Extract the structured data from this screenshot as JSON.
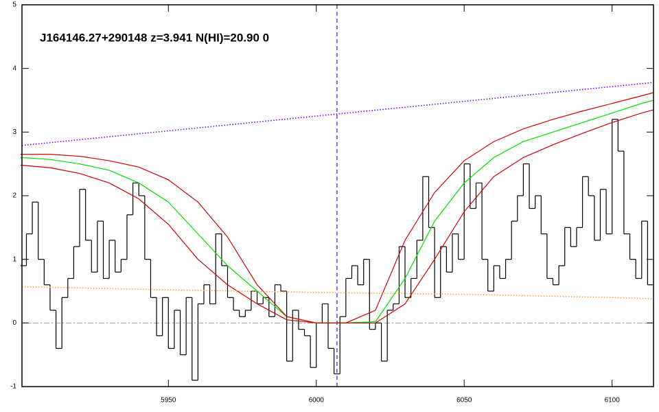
{
  "chart_data": {
    "type": "spectrum",
    "title": "J164146.27+290148 z=3.941 N(HI)=20.90 0",
    "xlim": [
      5900.5,
      6114
    ],
    "ylim": [
      -1,
      5
    ],
    "xticks": [
      5950,
      6000,
      6050,
      6100
    ],
    "yticks": [
      -1,
      0,
      1,
      2,
      3,
      4,
      5
    ],
    "bin_width": 2,
    "flux": {
      "color": "#000000",
      "x": [
        5901,
        5903,
        5905,
        5907,
        5909,
        5911,
        5913,
        5915,
        5917,
        5919,
        5921,
        5923,
        5925,
        5927,
        5929,
        5931,
        5933,
        5935,
        5937,
        5939,
        5941,
        5943,
        5945,
        5947,
        5949,
        5951,
        5953,
        5955,
        5957,
        5959,
        5961,
        5963,
        5965,
        5967,
        5969,
        5971,
        5973,
        5975,
        5977,
        5979,
        5981,
        5983,
        5985,
        5987,
        5989,
        5991,
        5993,
        5995,
        5997,
        5999,
        6001,
        6003,
        6005,
        6007,
        6009,
        6011,
        6013,
        6015,
        6017,
        6019,
        6021,
        6023,
        6025,
        6027,
        6029,
        6031,
        6033,
        6035,
        6037,
        6039,
        6041,
        6043,
        6045,
        6047,
        6049,
        6051,
        6053,
        6055,
        6057,
        6059,
        6061,
        6063,
        6065,
        6067,
        6069,
        6071,
        6073,
        6075,
        6077,
        6079,
        6081,
        6083,
        6085,
        6087,
        6089,
        6091,
        6093,
        6095,
        6097,
        6099,
        6101,
        6103,
        6105,
        6107,
        6109,
        6111,
        6113
      ],
      "values": [
        0.9,
        1.4,
        1.9,
        1.0,
        0.6,
        0.2,
        -0.4,
        0.4,
        0.7,
        1.2,
        2.1,
        1.3,
        0.8,
        1.6,
        0.7,
        1.3,
        0.8,
        1.0,
        1.7,
        2.2,
        2.0,
        1.0,
        0.4,
        -0.2,
        0.4,
        -0.4,
        0.2,
        -0.5,
        0.4,
        -0.9,
        0.3,
        0.6,
        0.3,
        1.4,
        0.9,
        0.4,
        0.2,
        0.1,
        0.2,
        0.5,
        0.3,
        0.4,
        0.1,
        0.6,
        0.5,
        -0.6,
        0.2,
        -0.1,
        -0.2,
        -0.7,
        0.0,
        0.3,
        -0.4,
        -0.8,
        0.1,
        0.7,
        0.9,
        0.6,
        1.0,
        -0.1,
        0.0,
        -0.6,
        0.2,
        0.3,
        1.2,
        0.4,
        0.7,
        1.3,
        2.3,
        1.5,
        0.4,
        1.2,
        0.8,
        1.4,
        1.0,
        2.5,
        1.8,
        2.2,
        1.0,
        0.5,
        0.9,
        0.7,
        1.0,
        1.6,
        2.0,
        2.5,
        1.8,
        2.0,
        1.4,
        0.7,
        0.6,
        0.9,
        1.5,
        1.2,
        1.5,
        2.3,
        2.0,
        1.3,
        2.1,
        1.4,
        3.2,
        2.7,
        1.4,
        1.0,
        0.7,
        1.6,
        0.6
      ]
    },
    "series": [
      {
        "color": "#00dd00",
        "style": "solid",
        "x": [
          5900,
          5910,
          5920,
          5930,
          5940,
          5950,
          5960,
          5970,
          5980,
          5990,
          6000,
          6010,
          6020,
          6030,
          6040,
          6050,
          6060,
          6070,
          6080,
          6090,
          6100,
          6110,
          6114
        ],
        "values": [
          2.6,
          2.57,
          2.5,
          2.4,
          2.2,
          1.9,
          1.4,
          0.9,
          0.5,
          0.1,
          0.0,
          0.0,
          0.02,
          0.7,
          1.6,
          2.2,
          2.6,
          2.85,
          3.0,
          3.15,
          3.3,
          3.45,
          3.5
        ]
      },
      {
        "color": "#cc0000",
        "style": "solid",
        "x": [
          5900,
          5910,
          5920,
          5930,
          5940,
          5950,
          5960,
          5970,
          5980,
          5990,
          6000,
          6010,
          6020,
          6030,
          6040,
          6050,
          6060,
          6070,
          6080,
          6090,
          6100,
          6110,
          6114
        ],
        "values": [
          2.65,
          2.65,
          2.62,
          2.55,
          2.45,
          2.25,
          1.9,
          1.35,
          0.6,
          0.1,
          0.0,
          0.0,
          0.2,
          1.3,
          2.05,
          2.55,
          2.85,
          3.05,
          3.2,
          3.33,
          3.45,
          3.57,
          3.62
        ]
      },
      {
        "color": "#cc0000",
        "style": "solid",
        "x": [
          5900,
          5910,
          5920,
          5930,
          5940,
          5950,
          5960,
          5970,
          5980,
          5990,
          6000,
          6010,
          6020,
          6030,
          6040,
          6050,
          6060,
          6070,
          6080,
          6090,
          6100,
          6110,
          6114
        ],
        "values": [
          2.48,
          2.44,
          2.35,
          2.2,
          1.95,
          1.55,
          1.0,
          0.6,
          0.3,
          0.05,
          0.0,
          0.0,
          0.0,
          0.3,
          1.0,
          1.75,
          2.3,
          2.6,
          2.8,
          2.98,
          3.15,
          3.3,
          3.35
        ]
      },
      {
        "color": "#6a00ff",
        "style": "dotted",
        "x": [
          5900.5,
          6114
        ],
        "values": [
          2.79,
          3.78
        ]
      },
      {
        "color": "#ff9a50",
        "style": "dotted",
        "x": [
          5900.5,
          5950,
          6000,
          6050,
          6100,
          6114
        ],
        "values": [
          0.57,
          0.52,
          0.48,
          0.45,
          0.4,
          0.38
        ]
      }
    ],
    "reference_lines": [
      {
        "axis": "y",
        "value": 0,
        "color": "#999999",
        "style": "dashdot"
      },
      {
        "axis": "x",
        "value": 6007,
        "color": "#0000bb",
        "style": "dashed"
      }
    ]
  }
}
